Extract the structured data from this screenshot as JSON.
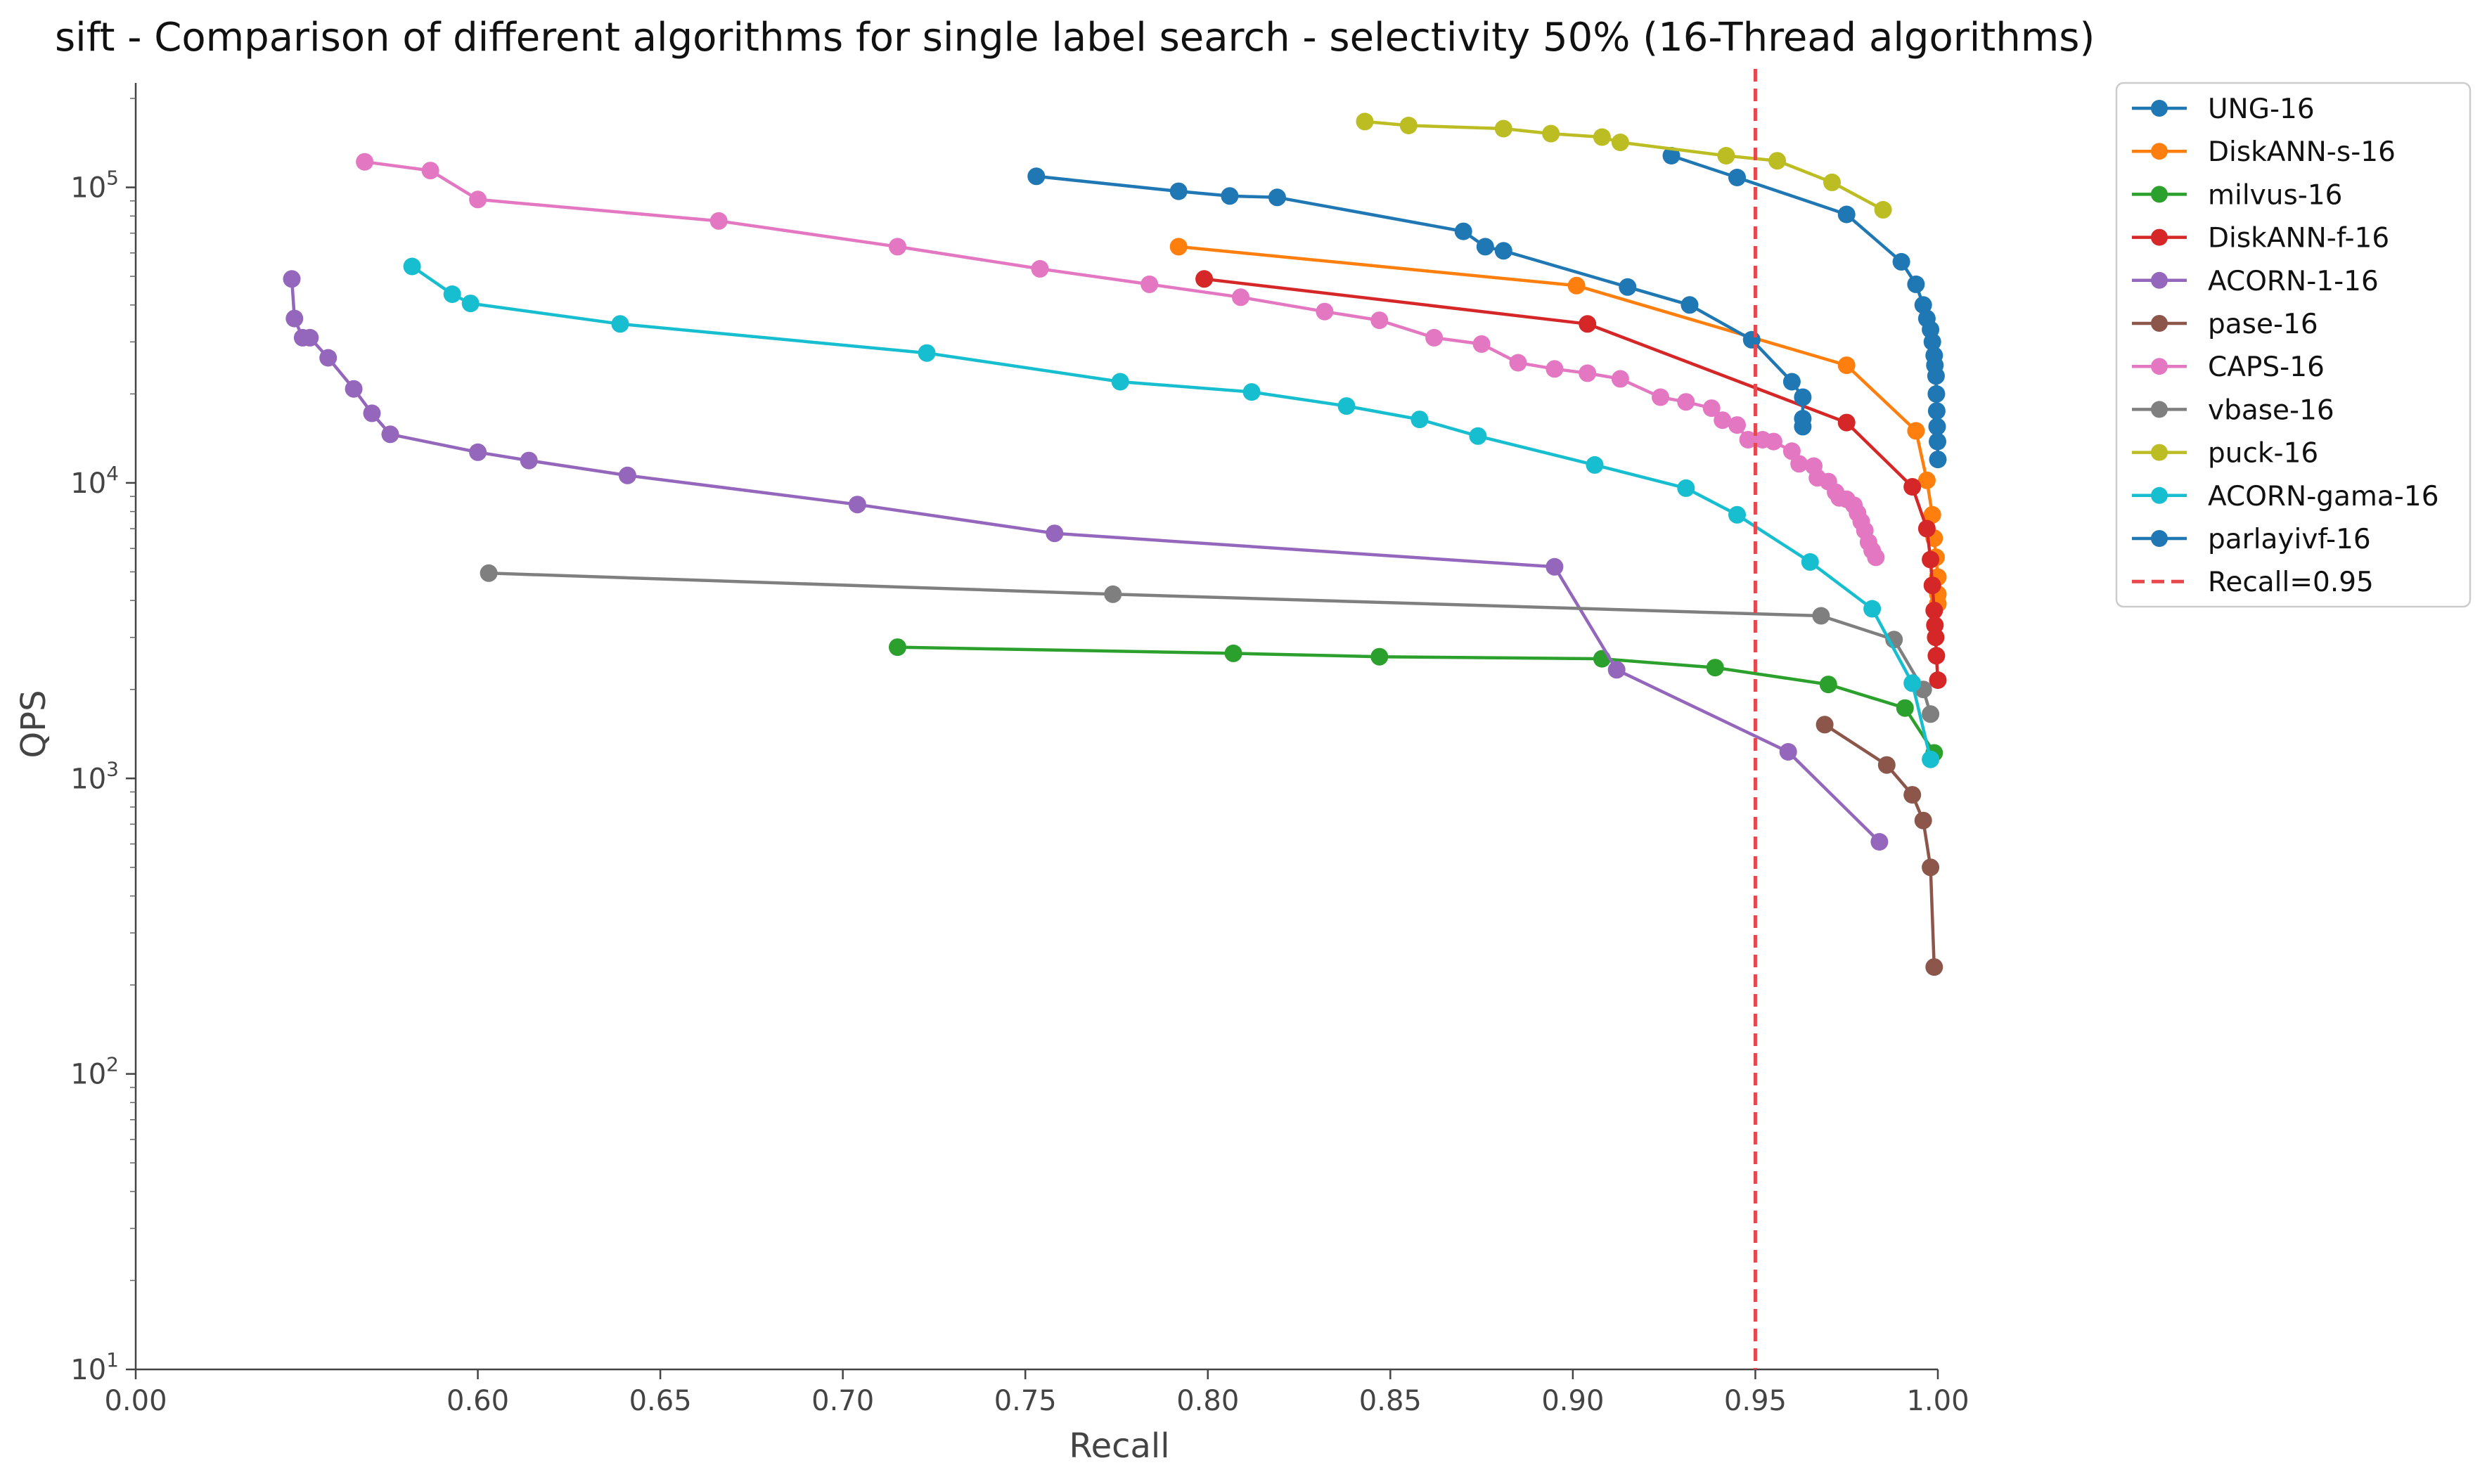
{
  "chart_data": {
    "type": "line",
    "title": "sift - Comparison of different algorithms for single label search - selectivity 50% (16-Thread algorithms)",
    "xlabel": "Recall",
    "ylabel": "QPS",
    "x_scale": "piecewise: 0.00 to 0.55 compressed, 0.55 to 1.00 linear",
    "y_scale": "log",
    "xlim": [
      0.0,
      1.0
    ],
    "ylim": [
      10,
      200000
    ],
    "x_ticks": [
      {
        "value": 0.0,
        "label": "0.00"
      },
      {
        "value": 0.6,
        "label": "0.60"
      },
      {
        "value": 0.65,
        "label": "0.65"
      },
      {
        "value": 0.7,
        "label": "0.70"
      },
      {
        "value": 0.75,
        "label": "0.75"
      },
      {
        "value": 0.8,
        "label": "0.80"
      },
      {
        "value": 0.85,
        "label": "0.85"
      },
      {
        "value": 0.9,
        "label": "0.90"
      },
      {
        "value": 0.95,
        "label": "0.95"
      },
      {
        "value": 1.0,
        "label": "1.00"
      }
    ],
    "y_ticks": [
      {
        "value": 10,
        "base": "10",
        "exp": "1"
      },
      {
        "value": 100,
        "base": "10",
        "exp": "2"
      },
      {
        "value": 1000,
        "base": "10",
        "exp": "3"
      },
      {
        "value": 10000,
        "base": "10",
        "exp": "4"
      },
      {
        "value": 100000,
        "base": "10",
        "exp": "5"
      }
    ],
    "grid": false,
    "legend_position": "top-right outside plot",
    "reference_line": {
      "name": "Recall=0.95",
      "x": 0.95,
      "color": "#e8474c",
      "style": "dashed"
    },
    "series": [
      {
        "name": "UNG-16",
        "color": "#1f77b4",
        "points": [
          [
            0.927,
            128000
          ],
          [
            0.945,
            108000
          ],
          [
            0.975,
            81000
          ],
          [
            0.99,
            56000
          ],
          [
            0.994,
            47000
          ],
          [
            0.996,
            40000
          ],
          [
            0.997,
            36000
          ],
          [
            0.998,
            33000
          ],
          [
            0.9985,
            30000
          ],
          [
            0.999,
            27000
          ],
          [
            0.9992,
            25000
          ],
          [
            0.9995,
            23000
          ],
          [
            0.9996,
            20000
          ],
          [
            0.9997,
            17500
          ],
          [
            0.9998,
            15500
          ],
          [
            0.9999,
            13800
          ],
          [
            1.0,
            12000
          ]
        ]
      },
      {
        "name": "DiskANN-s-16",
        "color": "#ff7f0e",
        "points": [
          [
            0.792,
            63000
          ],
          [
            0.901,
            46500
          ],
          [
            0.975,
            25000
          ],
          [
            0.994,
            15000
          ],
          [
            0.997,
            10200
          ],
          [
            0.9985,
            7800
          ],
          [
            0.999,
            6500
          ],
          [
            0.9995,
            5600
          ],
          [
            1.0,
            4800
          ],
          [
            1.0,
            4200
          ],
          [
            1.0,
            3900
          ]
        ]
      },
      {
        "name": "milvus-16",
        "color": "#2ca02c",
        "points": [
          [
            0.715,
            2780
          ],
          [
            0.807,
            2650
          ],
          [
            0.847,
            2580
          ],
          [
            0.908,
            2540
          ],
          [
            0.939,
            2370
          ],
          [
            0.97,
            2080
          ],
          [
            0.991,
            1730
          ],
          [
            0.999,
            1220
          ]
        ]
      },
      {
        "name": "DiskANN-f-16",
        "color": "#d62728",
        "points": [
          [
            0.799,
            49000
          ],
          [
            0.904,
            34500
          ],
          [
            0.975,
            16000
          ],
          [
            0.993,
            9700
          ],
          [
            0.997,
            7000
          ],
          [
            0.998,
            5500
          ],
          [
            0.9985,
            4500
          ],
          [
            0.999,
            3700
          ],
          [
            0.9992,
            3300
          ],
          [
            0.9994,
            3000
          ],
          [
            0.9996,
            2600
          ],
          [
            1.0,
            2150
          ]
        ]
      },
      {
        "name": "ACORN-1-16",
        "color": "#9467bd",
        "points": [
          [
            0.538,
            49000
          ],
          [
            0.547,
            36000
          ],
          [
            0.552,
            31000
          ],
          [
            0.554,
            31000
          ],
          [
            0.559,
            26500
          ],
          [
            0.566,
            20800
          ],
          [
            0.571,
            17200
          ],
          [
            0.576,
            14600
          ],
          [
            0.6,
            12700
          ],
          [
            0.614,
            11900
          ],
          [
            0.641,
            10600
          ],
          [
            0.704,
            8450
          ],
          [
            0.758,
            6750
          ],
          [
            0.895,
            5200
          ],
          [
            0.912,
            2330
          ],
          [
            0.959,
            1230
          ],
          [
            0.984,
            610
          ]
        ]
      },
      {
        "name": "pase-16",
        "color": "#8c564b",
        "points": [
          [
            0.969,
            1520
          ],
          [
            0.986,
            1110
          ],
          [
            0.993,
            880
          ],
          [
            0.996,
            720
          ],
          [
            0.998,
            500
          ],
          [
            0.999,
            230
          ]
        ]
      },
      {
        "name": "CAPS-16",
        "color": "#e377c2",
        "points": [
          [
            0.569,
            122000
          ],
          [
            0.587,
            114000
          ],
          [
            0.6,
            91000
          ],
          [
            0.666,
            77000
          ],
          [
            0.715,
            63000
          ],
          [
            0.754,
            53000
          ],
          [
            0.784,
            47000
          ],
          [
            0.809,
            42500
          ],
          [
            0.832,
            38000
          ],
          [
            0.847,
            35500
          ],
          [
            0.862,
            31000
          ],
          [
            0.875,
            29500
          ],
          [
            0.885,
            25500
          ],
          [
            0.895,
            24300
          ],
          [
            0.904,
            23500
          ],
          [
            0.913,
            22500
          ],
          [
            0.924,
            19500
          ],
          [
            0.931,
            18800
          ],
          [
            0.938,
            17900
          ],
          [
            0.941,
            16300
          ],
          [
            0.945,
            15700
          ],
          [
            0.948,
            14000
          ],
          [
            0.952,
            14000
          ],
          [
            0.955,
            13800
          ],
          [
            0.96,
            12800
          ],
          [
            0.962,
            11600
          ],
          [
            0.966,
            11400
          ],
          [
            0.967,
            10400
          ],
          [
            0.97,
            10100
          ],
          [
            0.972,
            9300
          ],
          [
            0.973,
            8900
          ],
          [
            0.975,
            8800
          ],
          [
            0.977,
            8400
          ],
          [
            0.978,
            7900
          ],
          [
            0.979,
            7400
          ],
          [
            0.98,
            6900
          ],
          [
            0.981,
            6300
          ],
          [
            0.982,
            5900
          ],
          [
            0.983,
            5600
          ]
        ]
      },
      {
        "name": "vbase-16",
        "color": "#7f7f7f",
        "points": [
          [
            0.603,
            4950
          ],
          [
            0.774,
            4200
          ],
          [
            0.968,
            3550
          ],
          [
            0.988,
            2950
          ],
          [
            0.996,
            2000
          ],
          [
            0.998,
            1650
          ]
        ]
      },
      {
        "name": "puck-16",
        "color": "#bcbd22",
        "points": [
          [
            0.843,
            167000
          ],
          [
            0.855,
            162000
          ],
          [
            0.881,
            158000
          ],
          [
            0.894,
            152000
          ],
          [
            0.908,
            148000
          ],
          [
            0.913,
            142000
          ],
          [
            0.942,
            128000
          ],
          [
            0.956,
            123000
          ],
          [
            0.971,
            104000
          ],
          [
            0.985,
            84000
          ]
        ]
      },
      {
        "name": "ACORN-gama-16",
        "color": "#17becf",
        "points": [
          [
            0.582,
            54000
          ],
          [
            0.593,
            43500
          ],
          [
            0.598,
            40500
          ],
          [
            0.639,
            34500
          ],
          [
            0.723,
            27500
          ],
          [
            0.776,
            22000
          ],
          [
            0.812,
            20300
          ],
          [
            0.838,
            18200
          ],
          [
            0.858,
            16400
          ],
          [
            0.874,
            14400
          ],
          [
            0.906,
            11500
          ],
          [
            0.931,
            9600
          ],
          [
            0.945,
            7800
          ],
          [
            0.965,
            5400
          ],
          [
            0.982,
            3750
          ],
          [
            0.993,
            2100
          ],
          [
            0.998,
            1160
          ]
        ]
      },
      {
        "name": "parlayivf-16",
        "color": "#1f77b4",
        "points": [
          [
            0.753,
            109000
          ],
          [
            0.792,
            97000
          ],
          [
            0.806,
            93500
          ],
          [
            0.819,
            92500
          ],
          [
            0.87,
            71000
          ],
          [
            0.876,
            63000
          ],
          [
            0.881,
            61000
          ],
          [
            0.915,
            46000
          ],
          [
            0.932,
            40000
          ],
          [
            0.949,
            30500
          ],
          [
            0.96,
            22000
          ],
          [
            0.963,
            19500
          ],
          [
            0.963,
            16500
          ],
          [
            0.963,
            15500
          ]
        ]
      }
    ]
  }
}
